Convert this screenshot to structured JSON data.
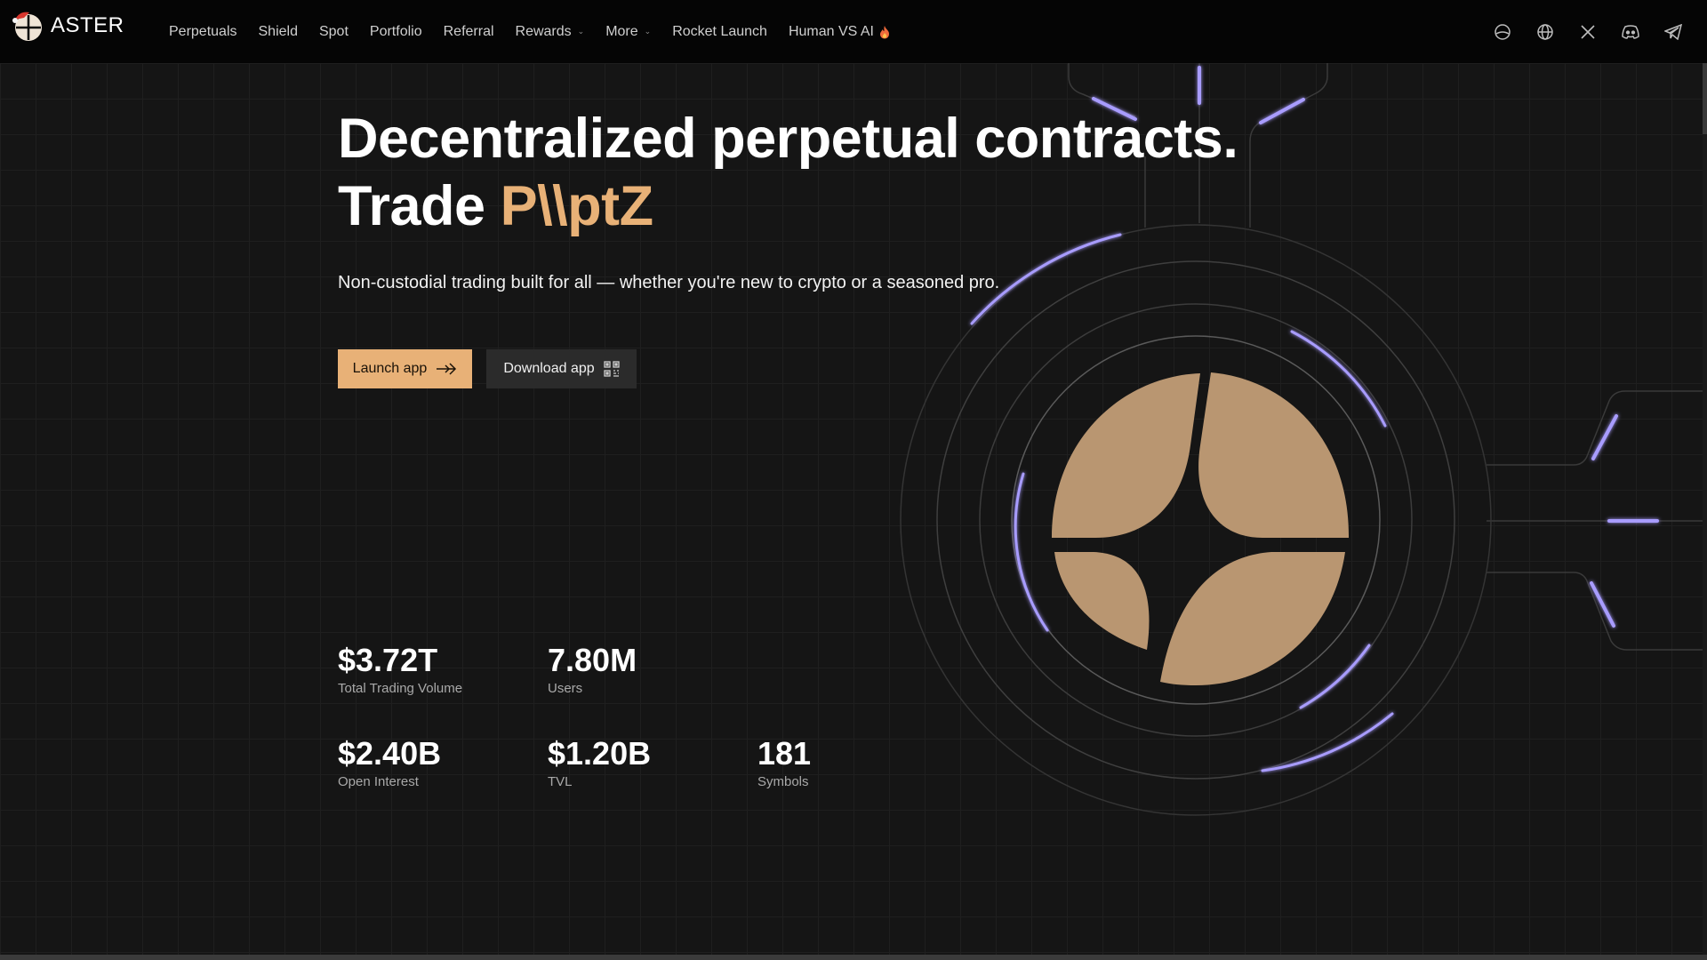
{
  "brand": {
    "name": "ASTER"
  },
  "nav": {
    "items": [
      {
        "label": "Perpetuals",
        "dropdown": false
      },
      {
        "label": "Shield",
        "dropdown": false
      },
      {
        "label": "Spot",
        "dropdown": false
      },
      {
        "label": "Portfolio",
        "dropdown": false
      },
      {
        "label": "Referral",
        "dropdown": false
      },
      {
        "label": "Rewards",
        "dropdown": true
      },
      {
        "label": "More",
        "dropdown": true
      },
      {
        "label": "Rocket Launch",
        "dropdown": false
      },
      {
        "label": "Human VS AI",
        "dropdown": false,
        "badge": "fire-icon"
      }
    ],
    "right_icons": [
      "theme-icon",
      "globe-icon",
      "x-icon",
      "discord-icon",
      "telegram-icon"
    ]
  },
  "hero": {
    "title_line1": "Decentralized perpetual contracts.",
    "title_line2_prefix": "Trade",
    "title_line2_accent": "P\\\\ptZ",
    "subtitle": "Non-custodial trading built for all — whether you're new to crypto or a seasoned pro.",
    "launch_button": "Launch app",
    "download_button": "Download app"
  },
  "stats": [
    {
      "value": "$3.72T",
      "label": "Total Trading Volume"
    },
    {
      "value": "7.80M",
      "label": "Users"
    },
    {
      "value": "$2.40B",
      "label": "Open Interest"
    },
    {
      "value": "$1.20B",
      "label": "TVL"
    },
    {
      "value": "181",
      "label": "Symbols"
    }
  ],
  "colors": {
    "accent": "#e8b177",
    "logo_fill": "#b99671",
    "glow": "#a89cff",
    "background": "#151515"
  }
}
